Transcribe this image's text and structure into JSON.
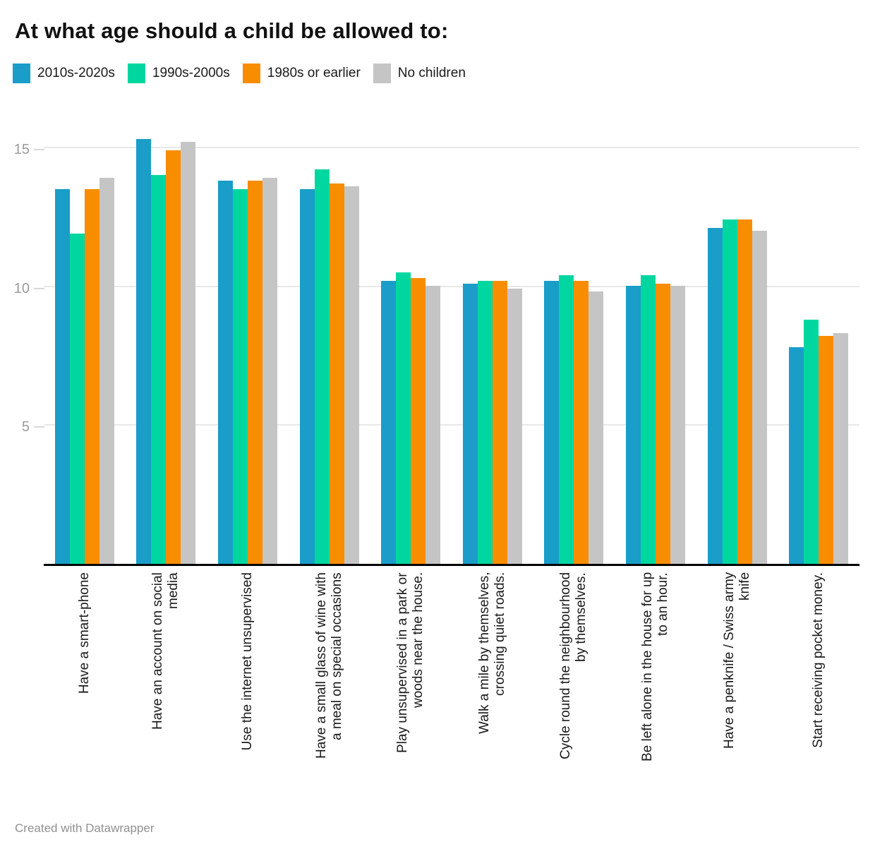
{
  "title": "At what age should a child be allowed to:",
  "footer": "Created with Datawrapper",
  "colors": {
    "series_blue": "#1a9dc9",
    "series_green": "#00d7a0",
    "series_orange": "#f98d00",
    "series_gray": "#c5c5c5",
    "gridline": "#e8e8e8",
    "axis": "#000000",
    "tick_label": "#9b9b9b"
  },
  "chart_data": {
    "type": "bar",
    "title": "At what age should a child be allowed to:",
    "xlabel": "",
    "ylabel": "",
    "ylim": [
      0,
      16.1
    ],
    "yticks": [
      5,
      10,
      15
    ],
    "grid": "horizontal",
    "legend_position": "top",
    "categories": [
      "Have a smart-phone",
      "Have an account on social media",
      "Use the internet unsupervised",
      "Have a small glass of wine with a meal on special occasions",
      "Play unsupervised in a park or woods near the house.",
      "Walk a mile by themselves, crossing quiet roads.",
      "Cycle round the neighbourhood by themselves.",
      "Be left alone in the house for up to an hour.",
      "Have a penknife / Swiss army knife",
      "Start receiving pocket money."
    ],
    "series": [
      {
        "name": "2010s-2020s",
        "color": "#1a9dc9",
        "values": [
          13.5,
          15.3,
          13.8,
          13.5,
          10.2,
          10.1,
          10.2,
          10.0,
          12.1,
          7.8
        ]
      },
      {
        "name": "1990s-2000s",
        "color": "#00d7a0",
        "values": [
          11.9,
          14.0,
          13.5,
          14.2,
          10.5,
          10.2,
          10.4,
          10.4,
          12.4,
          8.8
        ]
      },
      {
        "name": "1980s or earlier",
        "color": "#f98d00",
        "values": [
          13.5,
          14.9,
          13.8,
          13.7,
          10.3,
          10.2,
          10.2,
          10.1,
          12.4,
          8.2
        ]
      },
      {
        "name": "No children",
        "color": "#c5c5c5",
        "values": [
          13.9,
          15.2,
          13.9,
          13.6,
          10.0,
          9.9,
          9.8,
          10.0,
          12.0,
          8.3
        ]
      }
    ]
  }
}
